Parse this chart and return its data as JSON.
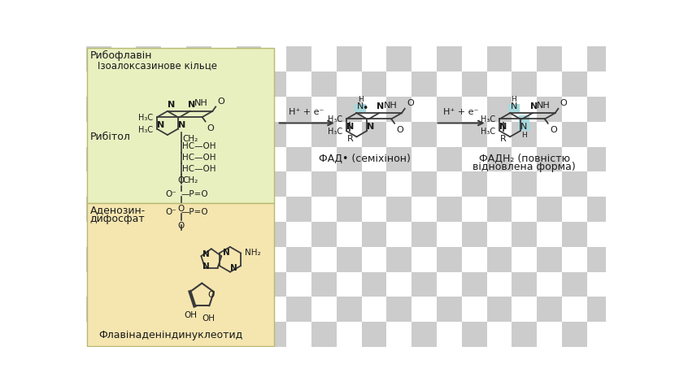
{
  "checker_color1": "#ffffff",
  "checker_color2": "#cccccc",
  "checker_size": 40,
  "green_box_color": "#e8f0c0",
  "tan_box_color": "#f5e6b0",
  "box_edge_color": "#b8b870",
  "line_color": "#3a3a3a",
  "text_color": "#1a1a1a",
  "highlight_color": "#a8d8dc",
  "label_riboflavin": "Рибофлавін",
  "label_isoalloxazine": "Ізоалоксазинове кільце",
  "label_ribitol": "Рибітол",
  "label_adenosine_line1": "Аденозин-",
  "label_adenosine_line2": "дифосфат",
  "label_flavin": "Флавінаденіндинуклеотид",
  "label_fad_semi": "ФАД• (семіхінон)",
  "label_fadh2_line1": "ФАДН₂ (повністю",
  "label_fadh2_line2": "відновлена форма)",
  "arrow_label": "H⁺ + e⁻"
}
